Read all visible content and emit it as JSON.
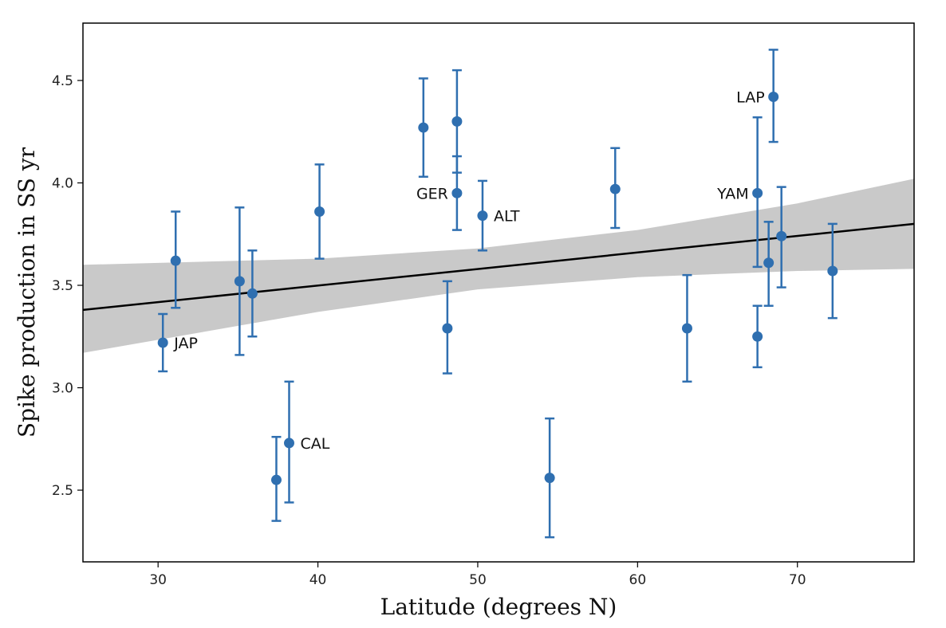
{
  "chart_data": {
    "type": "scatter",
    "title": "",
    "xlabel": "Latitude (degrees N)",
    "ylabel": "Spike production in SS yr",
    "xlim": [
      25.3,
      77.3
    ],
    "ylim": [
      2.15,
      4.78
    ],
    "xticks": [
      30,
      40,
      50,
      60,
      70
    ],
    "yticks": [
      2.5,
      3.0,
      3.5,
      4.0,
      4.5
    ],
    "grid": false,
    "colors": {
      "points": "#2f6fb0",
      "fit_line": "#000000",
      "band": "#c9c9c9"
    },
    "points": [
      {
        "x": 30.3,
        "y": 3.22,
        "err_low": 3.08,
        "err_high": 3.36,
        "label": "JAP"
      },
      {
        "x": 31.1,
        "y": 3.62,
        "err_low": 3.39,
        "err_high": 3.86,
        "label": ""
      },
      {
        "x": 35.1,
        "y": 3.52,
        "err_low": 3.16,
        "err_high": 3.88,
        "label": ""
      },
      {
        "x": 35.9,
        "y": 3.46,
        "err_low": 3.25,
        "err_high": 3.67,
        "label": ""
      },
      {
        "x": 37.4,
        "y": 2.55,
        "err_low": 2.35,
        "err_high": 2.76,
        "label": ""
      },
      {
        "x": 38.2,
        "y": 2.73,
        "err_low": 2.44,
        "err_high": 3.03,
        "label": "CAL"
      },
      {
        "x": 40.1,
        "y": 3.86,
        "err_low": 3.63,
        "err_high": 4.09,
        "label": ""
      },
      {
        "x": 46.6,
        "y": 4.27,
        "err_low": 4.03,
        "err_high": 4.51,
        "label": ""
      },
      {
        "x": 48.1,
        "y": 3.29,
        "err_low": 3.07,
        "err_high": 3.52,
        "label": ""
      },
      {
        "x": 48.7,
        "y": 4.3,
        "err_low": 4.05,
        "err_high": 4.55,
        "label": ""
      },
      {
        "x": 48.7,
        "y": 3.95,
        "err_low": 3.77,
        "err_high": 4.13,
        "label": "GER"
      },
      {
        "x": 50.3,
        "y": 3.84,
        "err_low": 3.67,
        "err_high": 4.01,
        "label": "ALT"
      },
      {
        "x": 54.5,
        "y": 2.56,
        "err_low": 2.27,
        "err_high": 2.85,
        "label": ""
      },
      {
        "x": 58.6,
        "y": 3.97,
        "err_low": 3.78,
        "err_high": 4.17,
        "label": ""
      },
      {
        "x": 63.1,
        "y": 3.29,
        "err_low": 3.03,
        "err_high": 3.55,
        "label": ""
      },
      {
        "x": 67.5,
        "y": 3.25,
        "err_low": 3.1,
        "err_high": 3.4,
        "label": ""
      },
      {
        "x": 67.5,
        "y": 3.95,
        "err_low": 3.59,
        "err_high": 4.32,
        "label": "YAM"
      },
      {
        "x": 68.2,
        "y": 3.61,
        "err_low": 3.4,
        "err_high": 3.81,
        "label": ""
      },
      {
        "x": 68.5,
        "y": 4.42,
        "err_low": 4.2,
        "err_high": 4.65,
        "label": "LAP"
      },
      {
        "x": 69.0,
        "y": 3.74,
        "err_low": 3.49,
        "err_high": 3.98,
        "label": ""
      },
      {
        "x": 72.2,
        "y": 3.57,
        "err_low": 3.34,
        "err_high": 3.8,
        "label": ""
      }
    ],
    "fit_line": {
      "x": [
        25.3,
        77.3
      ],
      "y": [
        3.38,
        3.8
      ]
    },
    "confidence_band": {
      "x": [
        25.3,
        40,
        50,
        60,
        70,
        77.3
      ],
      "lower": [
        3.17,
        3.37,
        3.48,
        3.54,
        3.57,
        3.58
      ],
      "upper": [
        3.6,
        3.63,
        3.68,
        3.77,
        3.9,
        4.02
      ]
    }
  }
}
